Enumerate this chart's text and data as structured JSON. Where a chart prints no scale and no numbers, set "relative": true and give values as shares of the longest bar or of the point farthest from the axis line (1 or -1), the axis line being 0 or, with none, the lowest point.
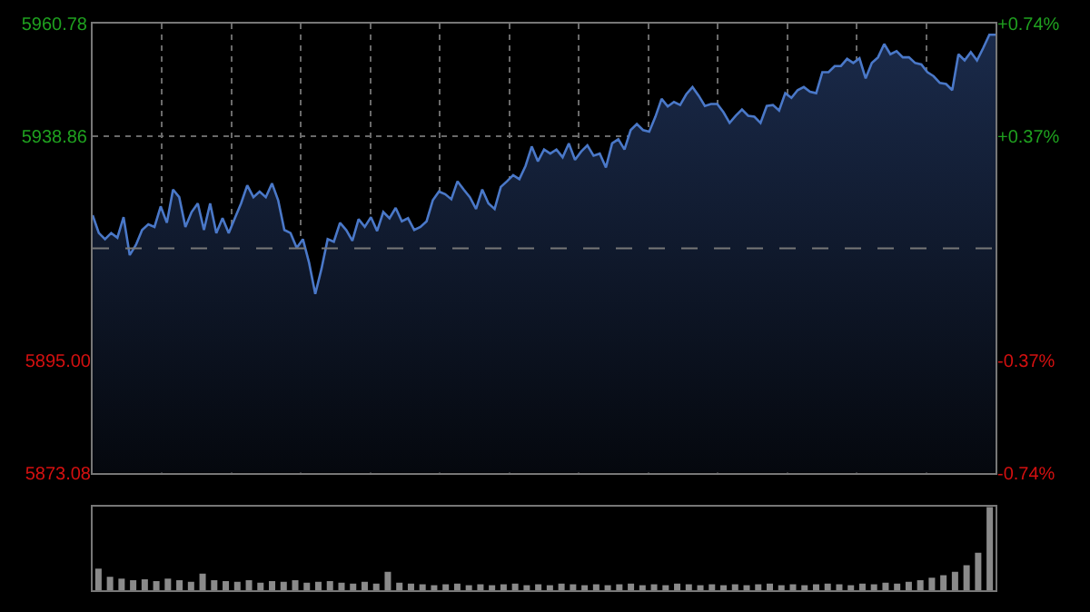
{
  "chart_data": [
    {
      "type": "area",
      "categories": [
        null,
        null,
        null,
        null,
        null,
        null,
        null,
        null,
        null,
        null,
        null,
        null,
        null,
        null,
        null,
        null,
        null,
        null,
        null,
        null,
        null,
        null,
        null,
        null,
        null,
        null,
        null,
        null,
        null,
        null,
        null,
        null,
        null,
        null,
        null,
        null,
        null,
        null,
        null,
        null,
        null,
        null,
        null,
        null,
        null,
        null,
        null,
        null,
        null,
        null,
        null,
        null,
        null,
        null,
        null,
        null,
        null,
        null,
        null,
        null,
        null,
        null,
        null,
        null,
        null,
        null,
        null,
        null,
        null,
        null,
        null,
        null,
        null,
        null,
        null,
        null,
        null,
        null,
        null,
        null,
        null,
        null,
        null,
        null,
        null,
        null,
        null,
        null,
        null,
        null,
        null,
        null,
        null,
        null,
        null,
        null,
        null,
        null,
        null,
        null,
        null,
        null,
        null,
        null,
        null,
        null,
        null,
        null,
        null,
        null,
        null,
        null,
        null,
        null,
        null,
        null,
        null,
        null,
        null,
        null,
        null,
        null,
        null,
        null,
        null,
        null,
        null,
        null,
        null,
        null,
        null,
        null,
        null,
        null,
        null,
        null,
        null,
        null,
        null,
        null,
        null,
        null,
        null,
        null,
        null,
        null,
        null
      ],
      "series": [
        {
          "color": "#4a78c8",
          "values": [
            5923.4,
            5919.9,
            5918.7,
            5919.9,
            5919.0,
            5923.0,
            5915.6,
            5917.6,
            5920.5,
            5921.6,
            5921.1,
            5925.1,
            5921.9,
            5928.4,
            5926.9,
            5921.1,
            5924.0,
            5925.7,
            5920.5,
            5925.7,
            5919.9,
            5922.8,
            5919.9,
            5922.8,
            5925.7,
            5929.2,
            5926.9,
            5928.0,
            5926.9,
            5929.6,
            5926.3,
            5920.5,
            5919.9,
            5917.0,
            5918.7,
            5914.1,
            5908.0,
            5912.9,
            5918.7,
            5918.2,
            5921.9,
            5920.5,
            5918.4,
            5922.6,
            5921.1,
            5923.0,
            5920.3,
            5924.0,
            5922.8,
            5924.8,
            5922.2,
            5922.8,
            5920.5,
            5921.1,
            5922.2,
            5926.3,
            5928.0,
            5927.5,
            5926.5,
            5930.0,
            5928.4,
            5926.9,
            5924.6,
            5928.4,
            5925.7,
            5924.6,
            5928.9,
            5930.0,
            5931.2,
            5930.4,
            5933.0,
            5936.8,
            5933.9,
            5936.2,
            5935.4,
            5936.2,
            5934.7,
            5937.4,
            5934.2,
            5935.8,
            5937.0,
            5935.0,
            5935.4,
            5932.7,
            5937.4,
            5938.2,
            5936.2,
            5940.0,
            5941.2,
            5940.0,
            5939.7,
            5942.6,
            5946.1,
            5944.6,
            5945.5,
            5944.9,
            5947.0,
            5948.4,
            5946.7,
            5944.7,
            5945.1,
            5945.1,
            5943.5,
            5941.4,
            5942.8,
            5944.0,
            5942.8,
            5942.6,
            5941.4,
            5944.7,
            5944.9,
            5943.8,
            5947.2,
            5946.3,
            5947.8,
            5948.4,
            5947.5,
            5947.2,
            5951.3,
            5951.3,
            5952.5,
            5952.5,
            5953.9,
            5953.1,
            5954.0,
            5950.1,
            5953.1,
            5954.2,
            5956.8,
            5954.8,
            5955.4,
            5954.2,
            5954.2,
            5953.1,
            5952.8,
            5951.3,
            5950.5,
            5949.2,
            5949.0,
            5947.8,
            5954.8,
            5953.6,
            5955.2,
            5953.6,
            5956.0,
            5958.6,
            5958.6
          ]
        }
      ],
      "ylim": [
        5873.08,
        5960.78
      ],
      "yticks": [
        5873.08,
        {
          "value": 5895.0,
          "label": "5895.00"
        },
        5938.86,
        5960.78
      ],
      "y2lim": [
        -0.74,
        0.74
      ],
      "y2ticks": [
        {
          "value": -0.74,
          "label": "-0.74%"
        },
        {
          "value": -0.37,
          "label": "-0.37%"
        },
        {
          "value": 0.37,
          "label": "+0.37%"
        },
        {
          "value": 0.74,
          "label": "+0.74%"
        }
      ],
      "ref_lines": [
        {
          "axis": "y",
          "value": 5916.93,
          "line_style": "dashed",
          "color": "#777777"
        }
      ],
      "grid": true,
      "tick_labels": "y",
      "legend": false
    },
    {
      "type": "bar",
      "relative": true,
      "color": "#8a8a8a",
      "tick_labels": false,
      "categories": [
        null,
        null,
        null,
        null,
        null,
        null,
        null,
        null,
        null,
        null,
        null,
        null,
        null,
        null,
        null,
        null,
        null,
        null,
        null,
        null,
        null,
        null,
        null,
        null,
        null,
        null,
        null,
        null,
        null,
        null,
        null,
        null,
        null,
        null,
        null,
        null,
        null,
        null,
        null,
        null,
        null,
        null,
        null,
        null,
        null,
        null,
        null,
        null,
        null,
        null,
        null,
        null,
        null,
        null,
        null,
        null,
        null,
        null,
        null,
        null,
        null,
        null,
        null,
        null,
        null,
        null,
        null,
        null,
        null,
        null,
        null,
        null,
        null,
        null,
        null,
        null,
        null,
        null
      ],
      "values": [
        0.26,
        0.16,
        0.14,
        0.12,
        0.13,
        0.11,
        0.14,
        0.12,
        0.1,
        0.2,
        0.12,
        0.11,
        0.1,
        0.12,
        0.09,
        0.11,
        0.1,
        0.12,
        0.09,
        0.1,
        0.11,
        0.09,
        0.08,
        0.1,
        0.08,
        0.22,
        0.09,
        0.08,
        0.07,
        0.06,
        0.07,
        0.08,
        0.06,
        0.07,
        0.06,
        0.07,
        0.08,
        0.06,
        0.07,
        0.06,
        0.08,
        0.07,
        0.06,
        0.07,
        0.06,
        0.07,
        0.08,
        0.06,
        0.07,
        0.06,
        0.08,
        0.07,
        0.06,
        0.07,
        0.06,
        0.07,
        0.06,
        0.07,
        0.08,
        0.06,
        0.07,
        0.06,
        0.07,
        0.08,
        0.07,
        0.06,
        0.08,
        0.07,
        0.09,
        0.08,
        0.1,
        0.12,
        0.15,
        0.18,
        0.22,
        0.3,
        0.45,
        1.0
      ],
      "legend": false
    }
  ]
}
